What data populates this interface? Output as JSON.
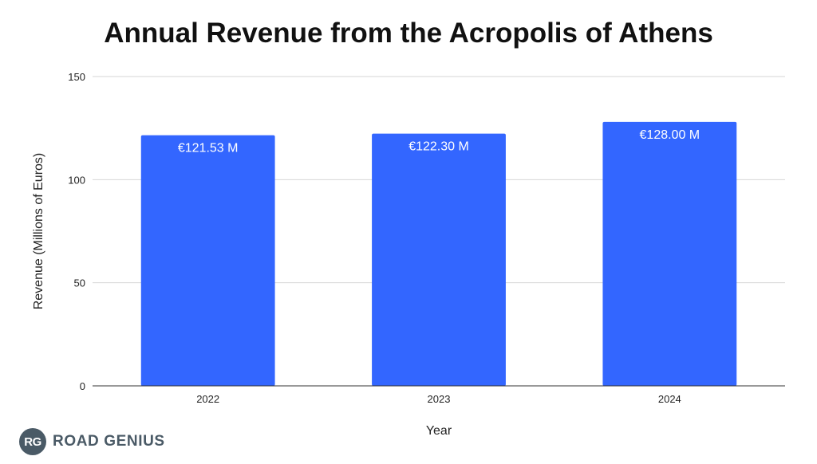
{
  "chart_data": {
    "type": "bar",
    "title": "Annual Revenue from the Acropolis of Athens",
    "xlabel": "Year",
    "ylabel": "Revenue (Millions of Euros)",
    "categories": [
      "2022",
      "2023",
      "2024"
    ],
    "values": [
      121.53,
      122.3,
      128.0
    ],
    "data_labels": [
      "€121.53 M",
      "€122.30 M",
      "€128.00 M"
    ],
    "ylim": [
      0,
      150
    ],
    "yticks": [
      "0",
      "50",
      "100",
      "150"
    ],
    "ytick_values": [
      0,
      50,
      100,
      150
    ],
    "grid": true,
    "legend": "none",
    "bar_color": "#3366ff"
  },
  "branding": {
    "logo_badge": "RG",
    "logo_text": "ROAD GENIUS"
  }
}
